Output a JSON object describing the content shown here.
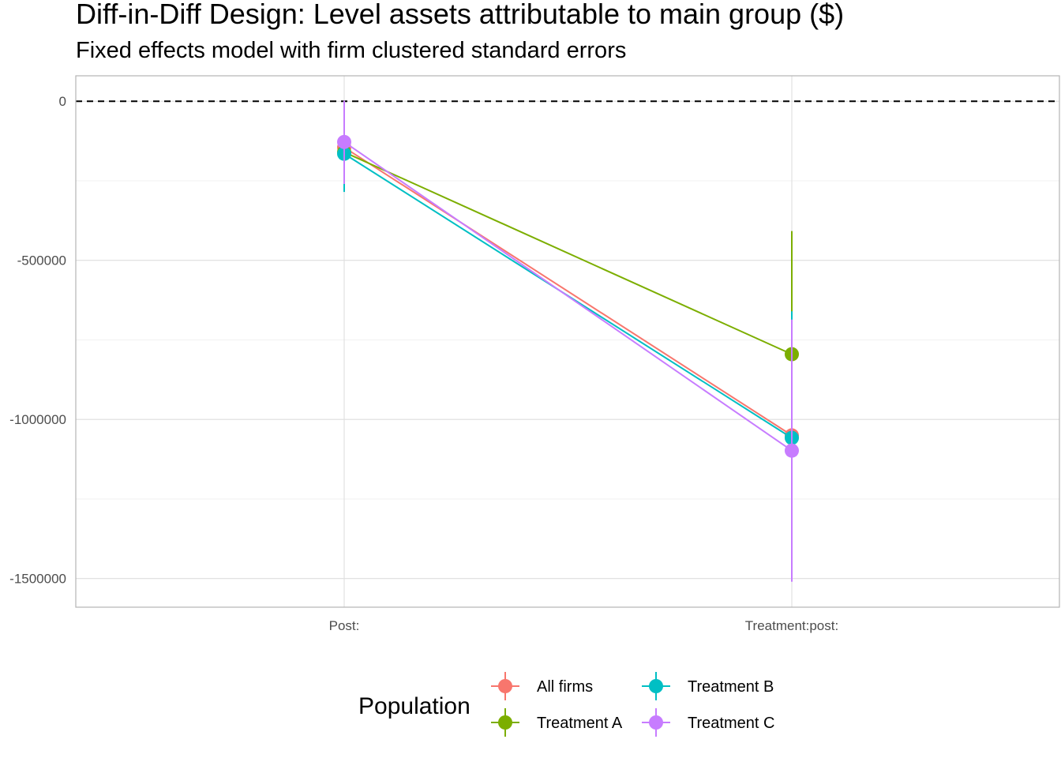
{
  "title": "Diff-in-Diff Design: Level assets attributable to main group  ($)",
  "subtitle": "Fixed effects model with firm clustered standard errors",
  "chart_data": {
    "type": "line",
    "categories": [
      "Post:",
      "Treatment:post:"
    ],
    "ylim": [
      -1590000,
      80000
    ],
    "yticks": [
      0,
      -500000,
      -1000000,
      -1500000
    ],
    "ytick_labels": [
      "0",
      "-500000",
      "-1000000",
      "-1500000"
    ],
    "reference_line": 0,
    "grid": true,
    "legend_title": "Population",
    "legend_position": "bottom",
    "series": [
      {
        "name": "All firms",
        "color": "#F8766D",
        "values": [
          -145000,
          -1050000
        ],
        "ci_lower": [
          -240000,
          -1350000
        ],
        "ci_upper": [
          -50000,
          -750000
        ]
      },
      {
        "name": "Treatment A",
        "color": "#7CAE00",
        "values": [
          -160000,
          -795000
        ],
        "ci_lower": [
          -255000,
          -1180000
        ],
        "ci_upper": [
          -65000,
          -408000
        ]
      },
      {
        "name": "Treatment B",
        "color": "#00BFC4",
        "values": [
          -165000,
          -1058000
        ],
        "ci_lower": [
          -285000,
          -1450000
        ],
        "ci_upper": [
          -45000,
          -660000
        ]
      },
      {
        "name": "Treatment C",
        "color": "#C77CFF",
        "values": [
          -128000,
          -1098000
        ],
        "ci_lower": [
          -260000,
          -1510000
        ],
        "ci_upper": [
          2000,
          -686000
        ]
      }
    ]
  }
}
